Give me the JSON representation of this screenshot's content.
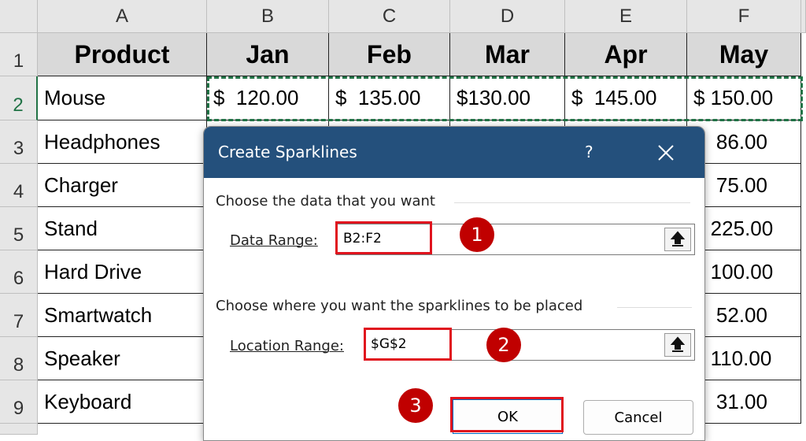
{
  "sheet": {
    "column_headers": [
      "A",
      "B",
      "C",
      "D",
      "E",
      "F"
    ],
    "row_numbers": [
      "1",
      "2",
      "3",
      "4",
      "5",
      "6",
      "7",
      "8",
      "9"
    ],
    "header": [
      "Product",
      "Jan",
      "Feb",
      "Mar",
      "Apr",
      "May"
    ],
    "rows": [
      {
        "A": "Mouse",
        "B": "$  120.00",
        "C": "$  135.00",
        "D": "$130.00",
        "E": "$  145.00",
        "F": "$ 150.00"
      },
      {
        "A": "Headphones",
        "F": "$  86.00"
      },
      {
        "A": "Charger",
        "F": "$  75.00"
      },
      {
        "A": "Stand",
        "F": "$ 225.00"
      },
      {
        "A": "Hard Drive",
        "F": "$ 100.00"
      },
      {
        "A": "Smartwatch",
        "F": "$  52.00"
      },
      {
        "A": "Speaker",
        "F": "$ 110.00"
      },
      {
        "A": "Keyboard",
        "F": "$  31.00"
      }
    ]
  },
  "dialog": {
    "title": "Create Sparklines",
    "help": "?",
    "section1": "Choose the data that you want",
    "data_range_label": "Data Range:",
    "data_range_value": "B2:F2",
    "section2": "Choose where you want the sparklines to be placed",
    "location_range_label": "Location Range:",
    "location_range_value": "$G$2",
    "ok": "OK",
    "cancel": "Cancel"
  },
  "callouts": [
    "1",
    "2",
    "3"
  ]
}
